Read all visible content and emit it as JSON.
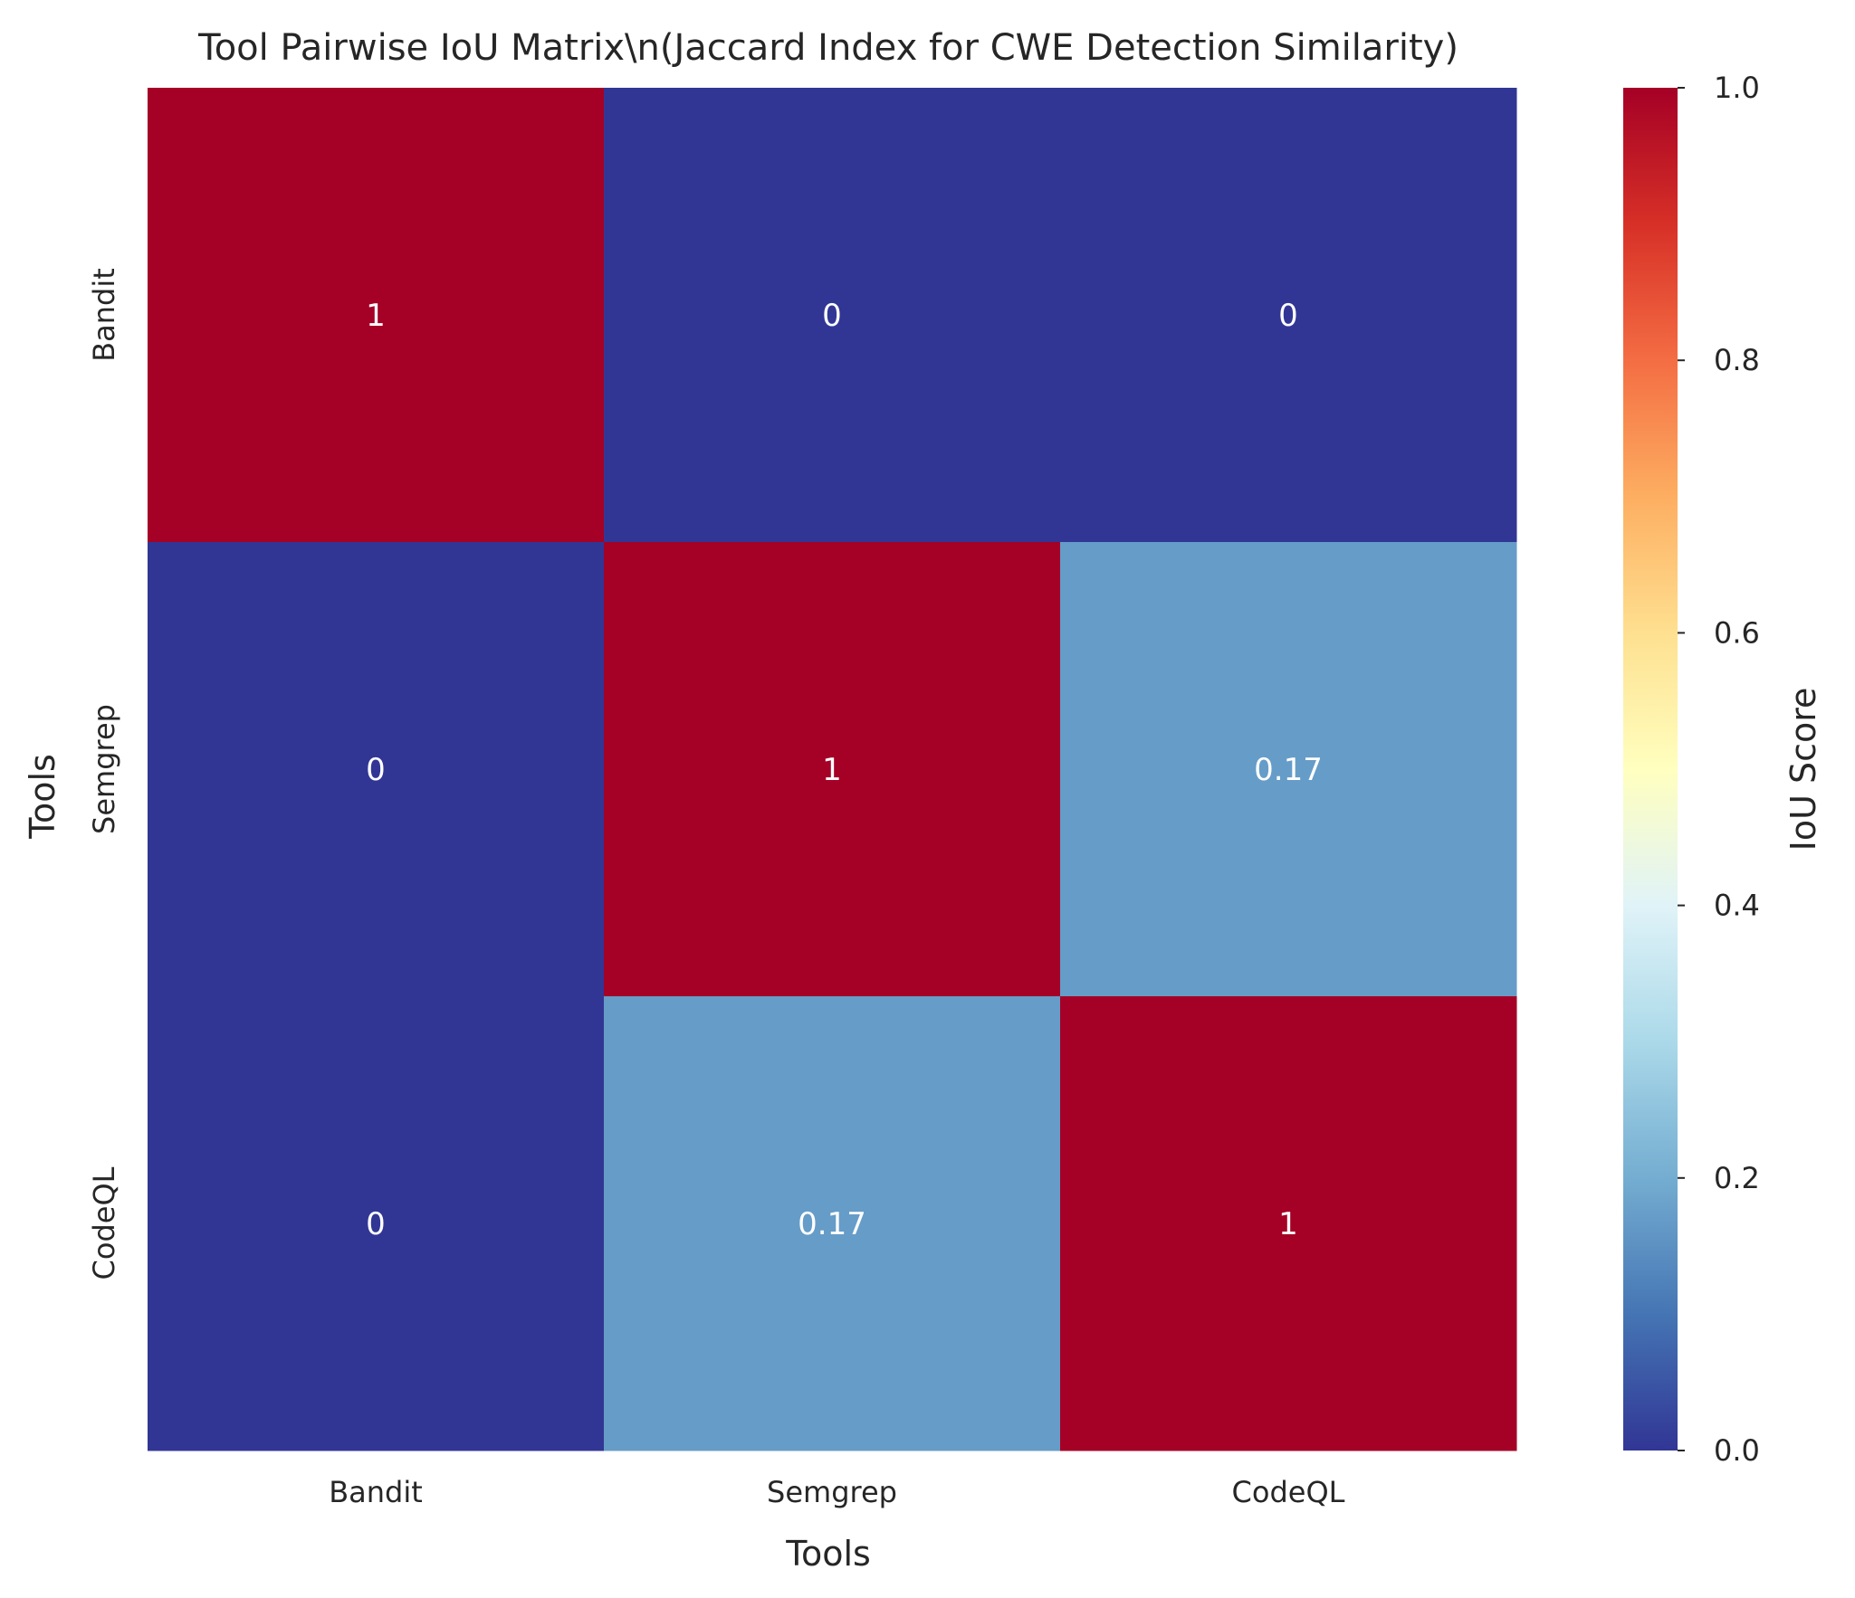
{
  "chart_data": {
    "type": "heatmap",
    "title": "Tool Pairwise IoU Matrix\\n(Jaccard Index for CWE Detection Similarity)",
    "xlabel": "Tools",
    "ylabel": "Tools",
    "x_categories": [
      "Bandit",
      "Semgrep",
      "CodeQL"
    ],
    "y_categories": [
      "Bandit",
      "Semgrep",
      "CodeQL"
    ],
    "values": [
      [
        1,
        0,
        0
      ],
      [
        0,
        1,
        0.17
      ],
      [
        0,
        0.17,
        1
      ]
    ],
    "cell_labels": [
      [
        "1",
        "0",
        "0"
      ],
      [
        "0",
        "1",
        "0.17"
      ],
      [
        "0",
        "0.17",
        "1"
      ]
    ],
    "colormap": "RdYlBu_r",
    "colorbar": {
      "label": "IoU Score",
      "range": [
        0,
        1
      ],
      "ticks": [
        "0.0",
        "0.2",
        "0.4",
        "0.6",
        "0.8",
        "1.0"
      ],
      "stops": [
        "#313695",
        "#4575b4",
        "#74add1",
        "#abd9e9",
        "#e0f3f8",
        "#ffffbf",
        "#fee090",
        "#fdae61",
        "#f46d43",
        "#d73027",
        "#a50026"
      ]
    },
    "grid": false
  }
}
